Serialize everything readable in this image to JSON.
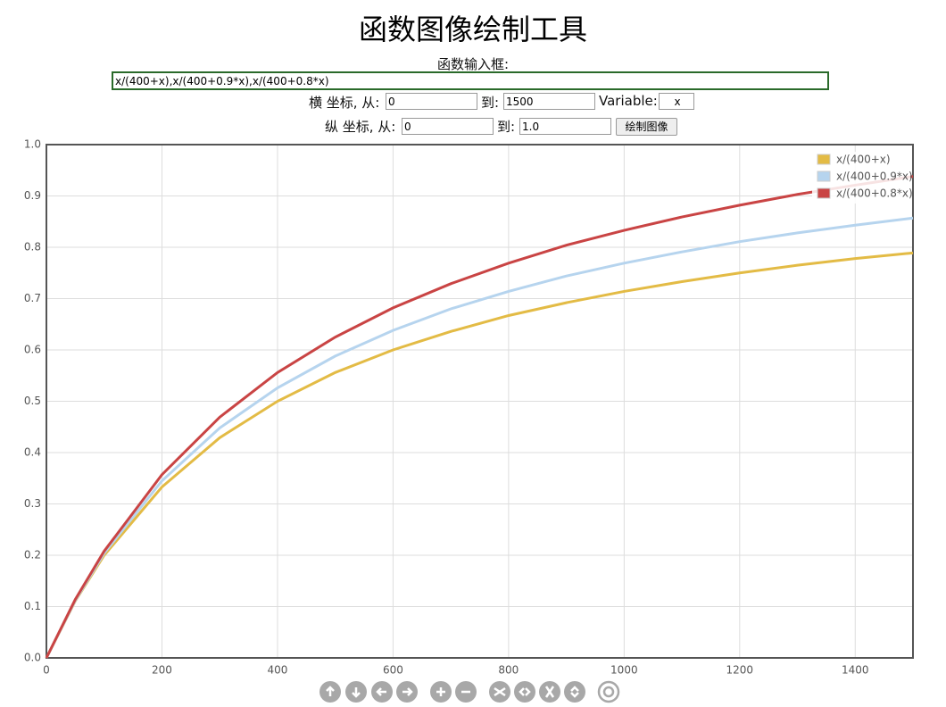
{
  "header": {
    "title": "函数图像绘制工具"
  },
  "form": {
    "input_label": "函数输入框:",
    "input_value": "x/(400+x),x/(400+0.9*x),x/(400+0.8*x)",
    "x_from_label": "横 坐标, 从:",
    "x_from": "0",
    "x_to_label": "到:",
    "x_to": "1500",
    "variable_label": "Variable:",
    "variable": "x",
    "y_from_label": "纵 坐标, 从:",
    "y_from": "0",
    "y_to_label": "到:",
    "y_to": "1.0",
    "button": "绘制图像"
  },
  "chart_data": {
    "type": "line",
    "x": [
      0,
      50,
      100,
      200,
      300,
      400,
      500,
      600,
      700,
      800,
      900,
      1000,
      1100,
      1200,
      1300,
      1400,
      1500
    ],
    "series": [
      {
        "name": "x/(400+x)",
        "color": "#e3bb45",
        "values": [
          0,
          0.111,
          0.2,
          0.333,
          0.429,
          0.5,
          0.556,
          0.6,
          0.636,
          0.667,
          0.692,
          0.714,
          0.733,
          0.75,
          0.765,
          0.778,
          0.789
        ]
      },
      {
        "name": "x/(400+0.9*x)",
        "color": "#b6d4ee",
        "values": [
          0,
          0.112,
          0.204,
          0.345,
          0.448,
          0.526,
          0.588,
          0.638,
          0.68,
          0.714,
          0.744,
          0.769,
          0.791,
          0.811,
          0.828,
          0.843,
          0.857
        ]
      },
      {
        "name": "x/(400+0.8*x)",
        "color": "#c94444",
        "values": [
          0,
          0.114,
          0.208,
          0.357,
          0.469,
          0.556,
          0.625,
          0.682,
          0.729,
          0.769,
          0.804,
          0.833,
          0.859,
          0.882,
          0.903,
          0.921,
          0.938
        ]
      }
    ],
    "xlim": [
      0,
      1500
    ],
    "ylim": [
      0,
      1.0
    ],
    "xticks": [
      0,
      200,
      400,
      600,
      800,
      1000,
      1200,
      1400
    ],
    "yticks": [
      {
        "value": 0,
        "label": "0.0"
      },
      0.1,
      0.2,
      0.3,
      0.4,
      0.5,
      0.6,
      0.7,
      0.8,
      0.9,
      {
        "value": 1.0,
        "label": "1.0"
      }
    ],
    "grid": true,
    "legend": "top-right"
  }
}
